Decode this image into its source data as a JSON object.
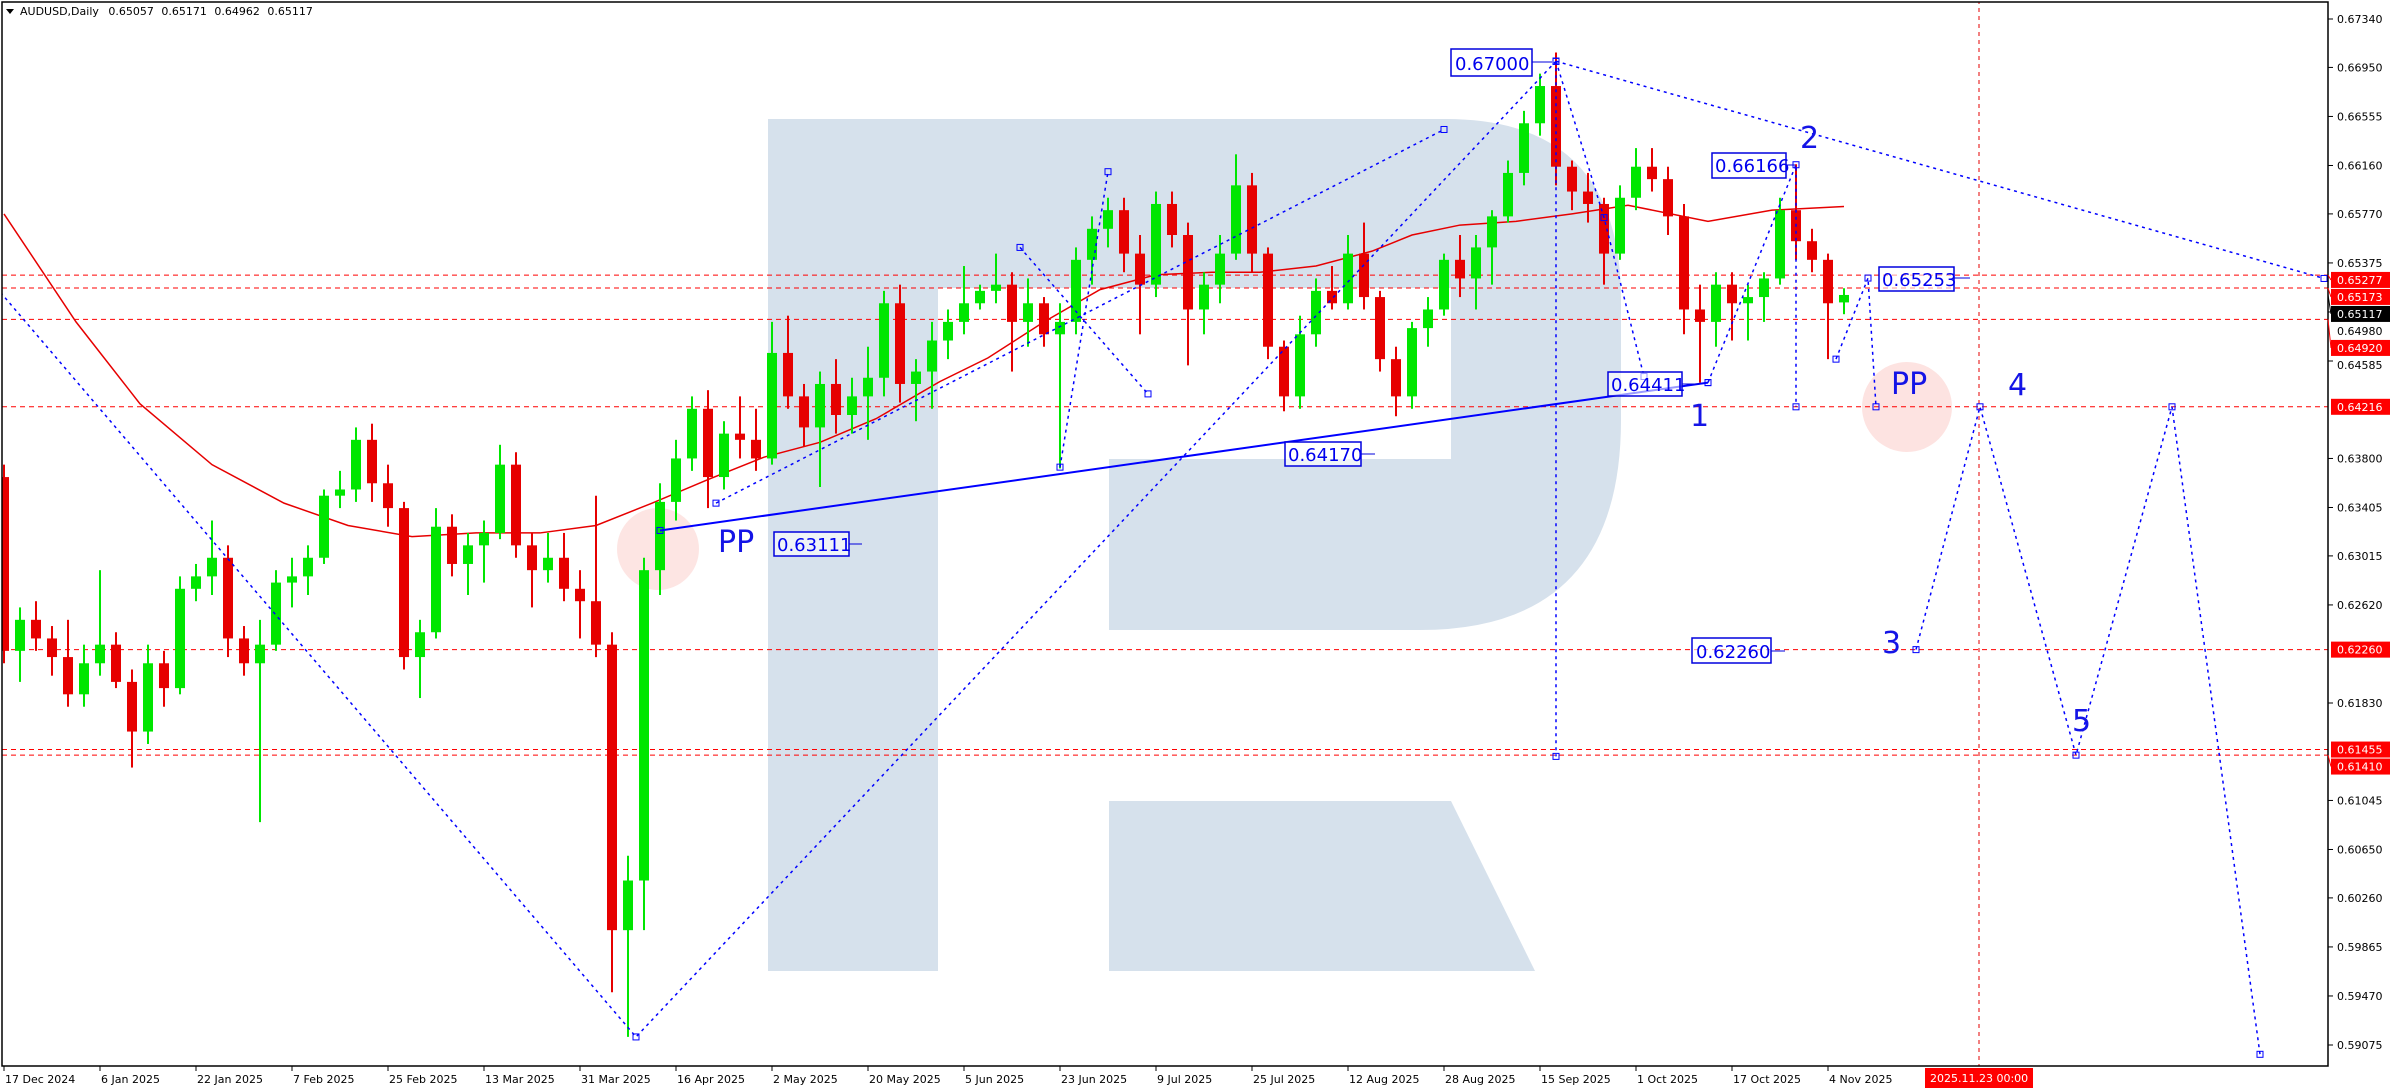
{
  "header": {
    "symbol": "AUDUSD,Daily",
    "open": "0.65057",
    "high": "0.65171",
    "low": "0.64962",
    "close": "0.65117"
  },
  "cursor_time_label": "2025.11.23 00:00",
  "price_boxes": {
    "top": "0.67000",
    "wave2": "0.66166",
    "target": "0.65253",
    "wave1": "0.64411",
    "aug_low": "0.64170",
    "pp_left": "0.63111",
    "wave3": "0.62260"
  },
  "wave_labels": {
    "w1": "1",
    "w2": "2",
    "w3": "3",
    "w4": "4",
    "w5": "5",
    "pp_left": "PP",
    "pp_right": "PP"
  },
  "chart_data": {
    "type": "candlestick",
    "symbol": "AUDUSD",
    "timeframe": "Daily",
    "ylim": [
      0.59075,
      0.6734
    ],
    "grid": false,
    "colors": {
      "bull": "#00e600",
      "bear": "#e60000",
      "moving_average": "#e60000",
      "annotation": "#0000ff",
      "level": "#ff0000",
      "current_price": "#000000",
      "watermark": "#d6e1ec",
      "pp_circle": "#fde0de"
    },
    "x_tick_labels": [
      "17 Dec 2024",
      "6 Jan 2025",
      "22 Jan 2025",
      "7 Feb 2025",
      "25 Feb 2025",
      "13 Mar 2025",
      "31 Mar 2025",
      "16 Apr 2025",
      "2 May 2025",
      "20 May 2025",
      "5 Jun 2025",
      "23 Jun 2025",
      "9 Jul 2025",
      "25 Jul 2025",
      "12 Aug 2025",
      "28 Aug 2025",
      "15 Sep 2025",
      "1 Oct 2025",
      "17 Oct 2025",
      "4 Nov 2025"
    ],
    "y_tick_labels": [
      "0.67340",
      "0.66950",
      "0.66555",
      "0.66160",
      "0.65770",
      "0.65375",
      "0.64980",
      "0.64585",
      "0.63800",
      "0.63405",
      "0.63015",
      "0.62620",
      "0.61830",
      "0.61045",
      "0.60650",
      "0.60260",
      "0.59865",
      "0.59470",
      "0.59075"
    ],
    "levels": [
      "0.65277",
      "0.65173",
      "0.64920",
      "0.64216",
      "0.62260",
      "0.61455",
      "0.61410"
    ],
    "current_price": "0.65117",
    "candles_ohlc": [
      [
        0.6365,
        0.6375,
        0.6215,
        0.6225
      ],
      [
        0.6225,
        0.626,
        0.62,
        0.625
      ],
      [
        0.625,
        0.6265,
        0.6225,
        0.6235
      ],
      [
        0.6235,
        0.6245,
        0.6205,
        0.622
      ],
      [
        0.622,
        0.625,
        0.618,
        0.619
      ],
      [
        0.619,
        0.623,
        0.618,
        0.6215
      ],
      [
        0.6215,
        0.629,
        0.6205,
        0.623
      ],
      [
        0.623,
        0.624,
        0.6195,
        0.62
      ],
      [
        0.62,
        0.621,
        0.6131,
        0.616
      ],
      [
        0.616,
        0.623,
        0.615,
        0.6215
      ],
      [
        0.6215,
        0.6225,
        0.618,
        0.6195
      ],
      [
        0.6195,
        0.6285,
        0.619,
        0.6275
      ],
      [
        0.6275,
        0.6295,
        0.6265,
        0.6285
      ],
      [
        0.6285,
        0.633,
        0.627,
        0.63
      ],
      [
        0.63,
        0.631,
        0.622,
        0.6235
      ],
      [
        0.6235,
        0.6245,
        0.6205,
        0.6215
      ],
      [
        0.6215,
        0.625,
        0.6087,
        0.623
      ],
      [
        0.623,
        0.629,
        0.6225,
        0.628
      ],
      [
        0.628,
        0.63,
        0.626,
        0.6285
      ],
      [
        0.6285,
        0.631,
        0.627,
        0.63
      ],
      [
        0.63,
        0.6355,
        0.6295,
        0.635
      ],
      [
        0.635,
        0.637,
        0.634,
        0.6355
      ],
      [
        0.6355,
        0.6405,
        0.6345,
        0.6395
      ],
      [
        0.6395,
        0.6408,
        0.6345,
        0.636
      ],
      [
        0.636,
        0.6375,
        0.6325,
        0.634
      ],
      [
        0.634,
        0.6345,
        0.621,
        0.622
      ],
      [
        0.622,
        0.625,
        0.6187,
        0.624
      ],
      [
        0.624,
        0.634,
        0.6235,
        0.6325
      ],
      [
        0.6325,
        0.6335,
        0.6285,
        0.6295
      ],
      [
        0.6295,
        0.632,
        0.627,
        0.631
      ],
      [
        0.631,
        0.633,
        0.628,
        0.632
      ],
      [
        0.632,
        0.6391,
        0.6315,
        0.6375
      ],
      [
        0.6375,
        0.6385,
        0.63,
        0.631
      ],
      [
        0.631,
        0.632,
        0.626,
        0.629
      ],
      [
        0.629,
        0.632,
        0.628,
        0.63
      ],
      [
        0.63,
        0.632,
        0.6265,
        0.6275
      ],
      [
        0.6275,
        0.629,
        0.6235,
        0.6265
      ],
      [
        0.6265,
        0.635,
        0.622,
        0.623
      ],
      [
        0.623,
        0.624,
        0.595,
        0.6
      ],
      [
        0.6,
        0.606,
        0.5914,
        0.604
      ],
      [
        0.604,
        0.63,
        0.6,
        0.629
      ],
      [
        0.629,
        0.636,
        0.627,
        0.6345
      ],
      [
        0.6345,
        0.6395,
        0.633,
        0.638
      ],
      [
        0.638,
        0.643,
        0.637,
        0.642
      ],
      [
        0.642,
        0.6435,
        0.634,
        0.6365
      ],
      [
        0.6365,
        0.641,
        0.6355,
        0.64
      ],
      [
        0.64,
        0.643,
        0.638,
        0.6395
      ],
      [
        0.6395,
        0.642,
        0.637,
        0.638
      ],
      [
        0.638,
        0.649,
        0.6375,
        0.6465
      ],
      [
        0.6465,
        0.6495,
        0.642,
        0.643
      ],
      [
        0.643,
        0.644,
        0.639,
        0.6405
      ],
      [
        0.6405,
        0.645,
        0.6357,
        0.644
      ],
      [
        0.644,
        0.646,
        0.64,
        0.6415
      ],
      [
        0.6415,
        0.6445,
        0.64,
        0.643
      ],
      [
        0.643,
        0.647,
        0.6395,
        0.6445
      ],
      [
        0.6445,
        0.6515,
        0.643,
        0.6505
      ],
      [
        0.6505,
        0.652,
        0.6425,
        0.644
      ],
      [
        0.644,
        0.646,
        0.641,
        0.645
      ],
      [
        0.645,
        0.649,
        0.642,
        0.6475
      ],
      [
        0.6475,
        0.65,
        0.646,
        0.649
      ],
      [
        0.649,
        0.6535,
        0.648,
        0.6505
      ],
      [
        0.6505,
        0.652,
        0.65,
        0.6515
      ],
      [
        0.6515,
        0.6545,
        0.6505,
        0.652
      ],
      [
        0.652,
        0.653,
        0.645,
        0.649
      ],
      [
        0.649,
        0.6525,
        0.647,
        0.6505
      ],
      [
        0.6505,
        0.651,
        0.647,
        0.648
      ],
      [
        0.648,
        0.6505,
        0.6372,
        0.649
      ],
      [
        0.649,
        0.655,
        0.648,
        0.654
      ],
      [
        0.654,
        0.6575,
        0.652,
        0.6565
      ],
      [
        0.6565,
        0.659,
        0.655,
        0.658
      ],
      [
        0.658,
        0.659,
        0.653,
        0.6545
      ],
      [
        0.6545,
        0.656,
        0.648,
        0.652
      ],
      [
        0.652,
        0.6595,
        0.651,
        0.6585
      ],
      [
        0.6585,
        0.6595,
        0.655,
        0.656
      ],
      [
        0.656,
        0.657,
        0.6455,
        0.65
      ],
      [
        0.65,
        0.653,
        0.648,
        0.652
      ],
      [
        0.652,
        0.656,
        0.6505,
        0.6545
      ],
      [
        0.6545,
        0.6625,
        0.654,
        0.66
      ],
      [
        0.66,
        0.661,
        0.653,
        0.6545
      ],
      [
        0.6545,
        0.655,
        0.646,
        0.647
      ],
      [
        0.647,
        0.6475,
        0.6418,
        0.643
      ],
      [
        0.643,
        0.6495,
        0.642,
        0.648
      ],
      [
        0.648,
        0.6525,
        0.647,
        0.6515
      ],
      [
        0.6515,
        0.6535,
        0.65,
        0.6505
      ],
      [
        0.6505,
        0.656,
        0.65,
        0.6545
      ],
      [
        0.6545,
        0.657,
        0.65,
        0.651
      ],
      [
        0.651,
        0.6515,
        0.645,
        0.646
      ],
      [
        0.646,
        0.647,
        0.6414,
        0.643
      ],
      [
        0.643,
        0.649,
        0.642,
        0.6485
      ],
      [
        0.6485,
        0.651,
        0.647,
        0.65
      ],
      [
        0.65,
        0.6545,
        0.6495,
        0.654
      ],
      [
        0.654,
        0.656,
        0.651,
        0.6525
      ],
      [
        0.6525,
        0.656,
        0.65,
        0.655
      ],
      [
        0.655,
        0.658,
        0.652,
        0.6575
      ],
      [
        0.6575,
        0.662,
        0.657,
        0.661
      ],
      [
        0.661,
        0.666,
        0.66,
        0.665
      ],
      [
        0.665,
        0.669,
        0.664,
        0.668
      ],
      [
        0.668,
        0.6707,
        0.66,
        0.6615
      ],
      [
        0.6615,
        0.662,
        0.658,
        0.6595
      ],
      [
        0.6595,
        0.661,
        0.657,
        0.6585
      ],
      [
        0.6585,
        0.659,
        0.652,
        0.6545
      ],
      [
        0.6545,
        0.66,
        0.654,
        0.659
      ],
      [
        0.659,
        0.663,
        0.658,
        0.6615
      ],
      [
        0.6615,
        0.663,
        0.6595,
        0.6605
      ],
      [
        0.6605,
        0.6615,
        0.656,
        0.6575
      ],
      [
        0.6575,
        0.6585,
        0.648,
        0.65
      ],
      [
        0.65,
        0.652,
        0.6441,
        0.649
      ],
      [
        0.649,
        0.653,
        0.647,
        0.652
      ],
      [
        0.652,
        0.653,
        0.6475,
        0.6505
      ],
      [
        0.6505,
        0.652,
        0.6475,
        0.651
      ],
      [
        0.651,
        0.653,
        0.649,
        0.6525
      ],
      [
        0.6525,
        0.659,
        0.652,
        0.658
      ],
      [
        0.658,
        0.6617,
        0.654,
        0.6555
      ],
      [
        0.6555,
        0.6565,
        0.653,
        0.654
      ],
      [
        0.654,
        0.6545,
        0.646,
        0.6505
      ],
      [
        0.65057,
        0.65171,
        0.64962,
        0.65117
      ]
    ],
    "moving_average": [
      [
        "2024-12-17",
        0.6577
      ],
      [
        "2024-12-31",
        0.649
      ],
      [
        "2025-01-13",
        0.6424
      ],
      [
        "2025-01-24",
        0.6375
      ],
      [
        "2025-02-06",
        0.6344
      ],
      [
        "2025-02-18",
        0.6326
      ],
      [
        "2025-02-28",
        0.6317
      ],
      [
        "2025-03-12",
        0.632
      ],
      [
        "2025-03-24",
        0.632
      ],
      [
        "2025-04-02",
        0.6326
      ],
      [
        "2025-04-11",
        0.6344
      ],
      [
        "2025-04-22",
        0.6363
      ],
      [
        "2025-05-01",
        0.6381
      ],
      [
        "2025-05-12",
        0.6393
      ],
      [
        "2025-05-21",
        0.6412
      ],
      [
        "2025-06-02",
        0.6442
      ],
      [
        "2025-06-10",
        0.6461
      ],
      [
        "2025-06-19",
        0.649
      ],
      [
        "2025-06-30",
        0.6516
      ],
      [
        "2025-07-09",
        0.6528
      ],
      [
        "2025-07-18",
        0.653
      ],
      [
        "2025-07-28",
        0.653
      ],
      [
        "2025-08-06",
        0.6535
      ],
      [
        "2025-08-15",
        0.6547
      ],
      [
        "2025-08-22",
        0.656
      ],
      [
        "2025-09-01",
        0.6568
      ],
      [
        "2025-09-10",
        0.6571
      ],
      [
        "2025-09-19",
        0.6577
      ],
      [
        "2025-09-30",
        0.6584
      ],
      [
        "2025-10-14",
        0.6571
      ],
      [
        "2025-10-24",
        0.658
      ],
      [
        "2025-11-06",
        0.6583
      ]
    ],
    "annotations": [
      {
        "style": "dotted",
        "points": [
          [
            "2024-12-16",
            0.6518
          ],
          [
            "2025-04-09",
            0.5914
          ],
          [
            "2025-09-17",
            0.67
          ]
        ]
      },
      {
        "style": "dotted",
        "points": [
          [
            "2025-09-17",
            0.67
          ],
          [
            "2026-01-29",
            0.6525
          ]
        ]
      },
      {
        "style": "solid",
        "points": [
          [
            "2025-04-14",
            0.6322
          ],
          [
            "2025-10-14",
            0.64411
          ]
        ]
      },
      {
        "style": "dotted",
        "points": [
          [
            "2025-04-23",
            0.6344
          ],
          [
            "2025-08-28",
            0.6645
          ]
        ]
      },
      {
        "style": "dotted",
        "points": [
          [
            "2025-06-16",
            0.655
          ],
          [
            "2025-07-08",
            0.6432
          ]
        ]
      },
      {
        "style": "dotted",
        "points": [
          [
            "2025-06-23",
            0.6373
          ],
          [
            "2025-07-01",
            0.6611
          ]
        ]
      },
      {
        "style": "dotted",
        "points": [
          [
            "2025-09-17",
            0.67
          ],
          [
            "2025-09-17",
            0.614
          ]
        ]
      },
      {
        "style": "dotted",
        "points": [
          [
            "2025-09-17",
            0.67
          ],
          [
            "2025-09-25",
            0.6574
          ],
          [
            "2025-10-02",
            0.6446
          ]
        ]
      },
      {
        "style": "dotted",
        "points": [
          [
            "2025-10-14",
            0.64411
          ],
          [
            "2025-10-29",
            0.66166
          ],
          [
            "2025-10-29",
            0.64216
          ]
        ]
      },
      {
        "style": "dotted",
        "points": [
          [
            "2025-11-05",
            0.646
          ],
          [
            "2025-11-11",
            0.65253
          ],
          [
            "2025-11-12",
            0.64216
          ]
        ]
      },
      {
        "style": "dotted",
        "points": [
          [
            "2025-11-19",
            0.6226
          ],
          [
            "2025-12-01",
            0.64216
          ],
          [
            "2025-12-17",
            0.6141
          ],
          [
            "2026-01-02",
            0.64216
          ],
          [
            "2026-01-19",
            0.59
          ]
        ]
      }
    ]
  }
}
